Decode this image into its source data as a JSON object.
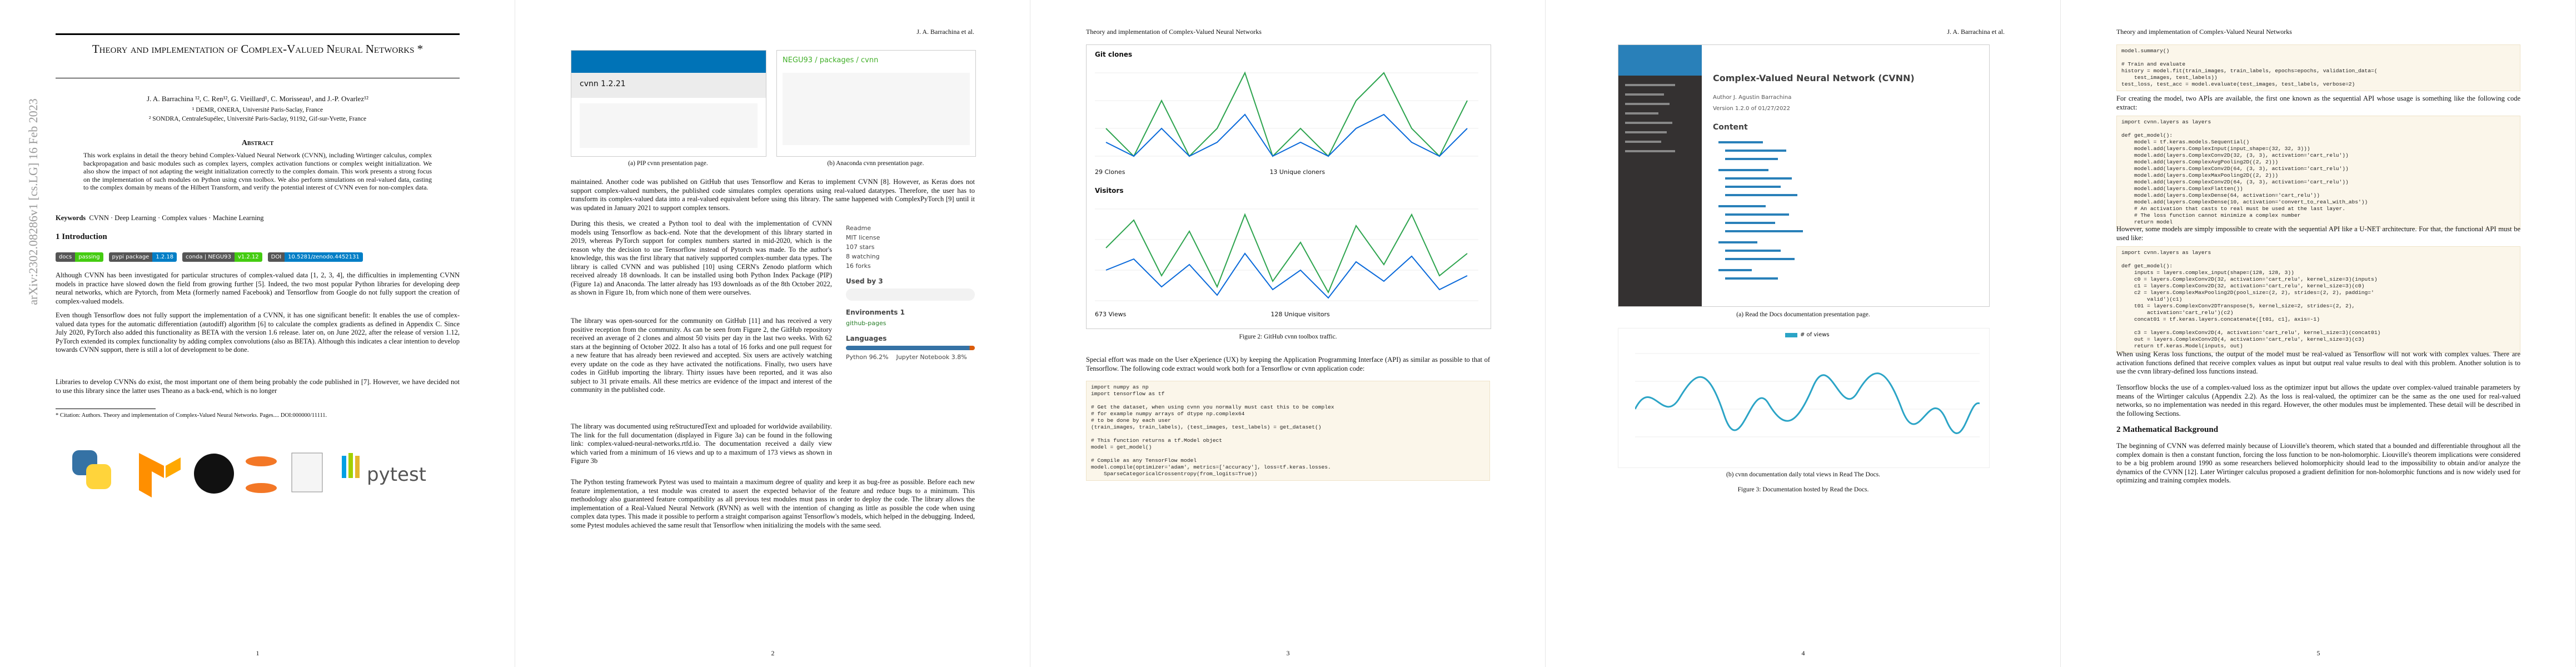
{
  "page1": {
    "arxiv": "arXiv:2302.08286v1  [cs.LG]  16 Feb 2023",
    "title": "Theory and implementation of Complex-Valued Neural Networks *",
    "authors": "J. A. Barrachina ¹², C. Ren¹², G. Vieillard¹, C. Morisseau¹, and J.-P. Ovarlez¹²",
    "aff1": "¹ DEMR, ONERA, Université Paris-Saclay, France",
    "aff2": "² SONDRA, CentraleSupélec, Université Paris-Saclay, 91192, Gif-sur-Yvette, France",
    "abstract_heading": "Abstract",
    "abstract": "This work explains in detail the theory behind Complex-Valued Neural Network (CVNN), including Wirtinger calculus, complex backpropagation and basic modules such as complex layers, complex activation functions or complex weight initialization. We also show the impact of not adapting the weight initialization correctly to the complex domain. This work presents a strong focus on the implementation of such modules on Python using cvnn toolbox. We also perform simulations on real-valued data, casting to the complex domain by means of the Hilbert Transform, and verify the potential interest of CVNN even for non-complex data.",
    "keywords_label": "Keywords",
    "keywords": "CVNN · Deep Learning · Complex values · Machine Learning",
    "section": "1   Introduction",
    "badges": [
      [
        "docs",
        "passing"
      ],
      [
        "pypi package",
        "1.2.18"
      ],
      [
        "conda | NEGU93",
        "v1.2.12"
      ],
      [
        "DOI",
        "10.5281/zenodo.4452131"
      ]
    ],
    "paragraphs": [
      "Although CVNN has been investigated for particular structures of complex-valued data [1, 2, 3, 4], the difficulties in implementing CVNN models in practice have slowed down the field from growing further [5]. Indeed, the two most popular Python libraries for developing deep neural networks, which are Pytorch, from Meta (formerly named Facebook) and Tensorflow from Google do not fully support the creation of complex-valued models.",
      "Even though Tensorflow does not fully support the implementation of a CVNN, it has one significant benefit: It enables the use of complex-valued data types for the automatic differentiation (autodiff) algorithm [6] to calculate the complex gradients as defined in Appendix C. Since July 2020, PyTorch also added this functionality as BETA with the version 1.6 release. later on, on June 2022, after the release of version 1.12, PyTorch extended its complex functionality by adding complex convolutions (also as BETA). Although this indicates a clear intention to develop towards CVNN support, there is still a lot of development to be done.",
      "Libraries to develop CVNNs do exist, the most important one of them being probably the code published in [7]. However, we have decided not to use this library since the latter uses Theano as a back-end, which is no longer"
    ],
    "footnote": "* Citation: Authors. Theory and implementation of Complex-Valued Neural Networks. Pages.... DOI:000000/11111.",
    "logo_text": "pytest",
    "number": "1"
  },
  "page2": {
    "header": "J. A. Barrachina et al.",
    "fig_a": "(a) PIP cvnn presentation page.",
    "fig_b": "(b) Anaconda cvnn presentation page.",
    "pip_title": "cvnn 1.2.21",
    "conda_title": "NEGU93 / packages / cvnn",
    "paragraphs": [
      "maintained. Another code was published on GitHub that uses Tensorflow and Keras to implement CVNN [8]. However, as Keras does not support complex-valued numbers, the published code simulates complex operations using real-valued datatypes. Therefore, the user has to transform its complex-valued data into a real-valued equivalent before using this library. The same happened with ComplexPyTorch [9] until it was updated in January 2021 to support complex tensors.",
      "During this thesis, we created a Python tool to deal with the implementation of CVNN models using Tensorflow as back-end. Note that the development of this library started in 2019, whereas PyTorch support for complex numbers started in mid-2020, which is the reason why the decision to use Tensorflow instead of Pytorch was made. To the author's knowledge, this was the first library that natively supported complex-number data types. The library is called CVNN and was published [10] using CERN's Zenodo platform which received already 18 downloads. It can be installed using both Python Index Package (PIP) (Figure 1a) and Anaconda. The latter already has 193 downloads as of the 8th October 2022, as shown in Figure 1b, from which none of them were ourselves.",
      "The library was open-sourced for the community on GitHub [11] and has received a very positive reception from the community. As can be seen from Figure 2, the GitHub repository received an average of 2 clones and almost 50 visits per day in the last two weeks. With 62 stars at the beginning of October 2022. It also has a total of 16 forks and one pull request for a new feature that has already been reviewed and accepted. Six users are actively watching every update on the code as they have activated the notifications. Finally, two users have codes in GitHub importing the library. Thirty issues have been reported, and it was also subject to 31 private emails. All these metrics are evidence of the impact and interest of the community in the published code.",
      "The library was documented using reStructuredText and uploaded for worldwide availability. The link for the full documentation (displayed in Figure 3a) can be found in the following link: complex-valued-neural-networks.rtfd.io. The documentation received a daily view which varied from a minimum of 16 views and up to a maximum of 173 views as shown in Figure 3b",
      "The Python testing framework Pytest was used to maintain a maximum degree of quality and keep it as bug-free as possible. Before each new feature implementation, a test module was created to assert the expected behavior of the feature and reduce bugs to a minimum. This methodology also guaranteed feature compatibility as all previous test modules must pass in order to deploy the code. The library allows the implementation of a Real-Valued Neural Network (RVNN) as well with the intention of changing as little as possible the code when using complex data types. This made it possible to perform a straight comparison against Tensorflow's models, which helped in the debugging. Indeed, some Pytest modules achieved the same result that Tensorflow when initializing the models with the same seed."
    ],
    "sidebar": [
      "Readme",
      "MIT license",
      "107 stars",
      "8 watching",
      "16 forks"
    ],
    "used_by": "Used by 3",
    "env": "Environments 1",
    "env_item": "github-pages",
    "languages": "Languages",
    "lang_items": [
      "Python 96.2%",
      "Jupyter Notebook 3.8%"
    ],
    "number": "2"
  },
  "page3": {
    "header": "Theory and implementation of Complex-Valued Neural Networks",
    "clones_title": "Git clones",
    "clones_stats": [
      "29 Clones",
      "13 Unique cloners"
    ],
    "visitors_title": "Visitors",
    "visitors_stats": [
      "673 Views",
      "128 Unique visitors"
    ],
    "caption": "Figure 2: GitHub cvnn toolbox traffic.",
    "paragraph": "Special effort was made on the User eXperience (UX) by keeping the Application Programming Interface (API) as similar as possible to that of Tensorflow. The following code extract would work both for a Tensorflow or cvnn application code:",
    "code": "import numpy as np\nimport tensorflow as tf\n\n# Get the dataset, when using cvnn you normally must cast this to be complex\n# for example numpy arrays of dtype np.complex64\n# to be done by each user\n(train_images, train_labels), (test_images, test_labels) = get_dataset()\n\n# This function returns a tf.Model object\nmodel = get_model()\n\n# Compile as any TensorFlow model\nmodel.compile(optimizer='adam', metrics=['accuracy'], loss=tf.keras.losses.\n    SparseCategoricalCrossentropy(from_logits=True))",
    "number": "3"
  },
  "page4": {
    "header": "J. A. Barrachina et al.",
    "docs_title": "Complex-Valued Neural Network (CVNN)",
    "docs_meta": [
      "Author   J. Agustin Barrachina",
      "Version  1.2.0 of 01/27/2022"
    ],
    "docs_content": "Content",
    "fig_a": "(a) Read the Docs documentation presentation page.",
    "legend": "# of views",
    "fig_b": "(b) cvnn documentation daily total views in Read The Docs.",
    "caption": "Figure 3: Documentation hosted by Read the Docs.",
    "number": "4"
  },
  "page5": {
    "header": "Theory and implementation of Complex-Valued Neural Networks",
    "code1": "model.summary()\n\n# Train and evaluate\nhistory = model.fit(train_images, train_labels, epochs=epochs, validation_data=(\n    test_images, test_labels))\ntest_loss, test_acc = model.evaluate(test_images, test_labels, verbose=2)",
    "p1": "For creating the model, two APIs are available, the first one known as the sequential API whose usage is something like the following code extract:",
    "code2": "import cvnn.layers as layers\n\ndef get_model():\n    model = tf.keras.models.Sequential()\n    model.add(layers.ComplexInput(input_shape=(32, 32, 3)))\n    model.add(layers.ComplexConv2D(32, (3, 3), activation='cart_relu'))\n    model.add(layers.ComplexAvgPooling2D((2, 2)))\n    model.add(layers.ComplexConv2D(64, (3, 3), activation='cart_relu'))\n    model.add(layers.ComplexMaxPooling2D((2, 2)))\n    model.add(layers.ComplexConv2D(64, (3, 3), activation='cart_relu'))\n    model.add(layers.ComplexFlatten())\n    model.add(layers.ComplexDense(64, activation='cart_relu'))\n    model.add(layers.ComplexDense(10, activation='convert_to_real_with_abs'))\n    # An activation that casts to real must be used at the last layer.\n    # The loss function cannot minimize a complex number\n    return model",
    "p2": "However, some models are simply impossible to create with the sequential API like a U-NET architecture. For that, the functional API must be used like:",
    "code3": "import cvnn.layers as layers\n\ndef get_model():\n    inputs = layers.complex_input(shape=(128, 128, 3))\n    c0 = layers.ComplexConv2D(32, activation='cart_relu', kernel_size=3)(inputs)\n    c1 = layers.ComplexConv2D(32, activation='cart_relu', kernel_size=3)(c0)\n    c2 = layers.ComplexMaxPooling2D(pool_size=(2, 2), strides=(2, 2), padding='\n        valid')(c1)\n    t01 = layers.ComplexConv2DTranspose(5, kernel_size=2, strides=(2, 2),\n        activation='cart_relu')(c2)\n    concat01 = tf.keras.layers.concatenate([t01, c1], axis=-1)\n\n    c3 = layers.ComplexConv2D(4, activation='cart_relu', kernel_size=3)(concat01)\n    out = layers.ComplexConv2D(4, activation='cart_relu', kernel_size=3)(c3)\n    return tf.keras.Model(inputs, out)",
    "p3": "When using Keras loss functions, the output of the model must be real-valued as Tensorflow will not work with complex values. There are activation functions defined that receive complex values as input but output real value results to deal with this problem. Another solution is to use the cvnn library-defined loss functions instead.",
    "p4": "Tensorflow blocks the use of a complex-valued loss as the optimizer input but allows the update over complex-valued trainable parameters by means of the Wirtinger calculus (Appendix 2.2). As the loss is real-valued, the optimizer can be the same as the one used for real-valued networks, so no implementation was needed in this regard. However, the other modules must be implemented. These detail will be described in the following Sections.",
    "section": "2   Mathematical Background",
    "p5": "The beginning of CVNN was deferred mainly because of Liouville's theorem, which stated that a bounded and differentiable throughout all the complex domain is then a constant function, forcing the loss function to be non-holomorphic. Liouville's theorem implications were considered to be a big problem around 1990 as some researchers believed holomorphicity should lead to the impossibility to obtain and/or analyze the dynamics of the CVNN [12]. Later Wirtinger calculus proposed a gradient definition for non-holomorphic functions and is now widely used for optimizing and training complex models.",
    "number": "5"
  }
}
